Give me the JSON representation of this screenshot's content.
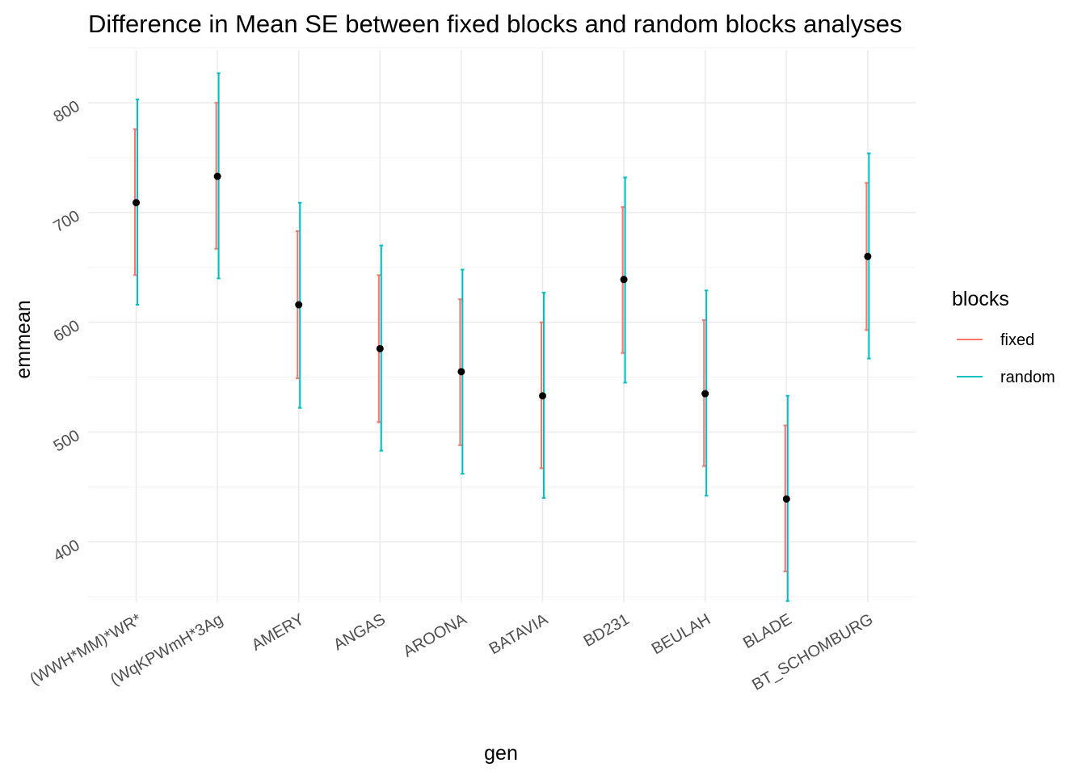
{
  "chart_data": {
    "type": "errorbar",
    "title": "Difference in Mean SE between fixed blocks and random blocks analyses",
    "xlabel": "gen",
    "ylabel": "emmean",
    "categories": [
      "(WWH*MM)*WR*",
      "(WqKPWmH*3Ag",
      "AMERY",
      "ANGAS",
      "AROONA",
      "BATAVIA",
      "BD231",
      "BEULAH",
      "BLADE",
      "BT_SCHOMBURG"
    ],
    "ylim": [
      345,
      848
    ],
    "y_ticks": [
      400,
      500,
      600,
      700,
      800
    ],
    "y_minor_ticks": [
      350,
      450,
      550,
      650,
      750,
      850
    ],
    "grid": true,
    "legend": {
      "title": "blocks",
      "position": "right"
    },
    "means": [
      709,
      733,
      616,
      576,
      555,
      533,
      639,
      535,
      439,
      660
    ],
    "series": [
      {
        "name": "fixed",
        "color": "#F8766D",
        "lower": [
          643,
          667,
          549,
          509,
          488,
          467,
          572,
          469,
          373,
          593
        ],
        "upper": [
          776,
          800,
          683,
          643,
          621,
          600,
          705,
          602,
          506,
          727
        ]
      },
      {
        "name": "random",
        "color": "#00BFC4",
        "lower": [
          616,
          640,
          522,
          483,
          462,
          440,
          545,
          442,
          346,
          567
        ],
        "upper": [
          803,
          827,
          709,
          670,
          648,
          627,
          732,
          629,
          533,
          754
        ]
      }
    ],
    "point_color": "#000000"
  }
}
